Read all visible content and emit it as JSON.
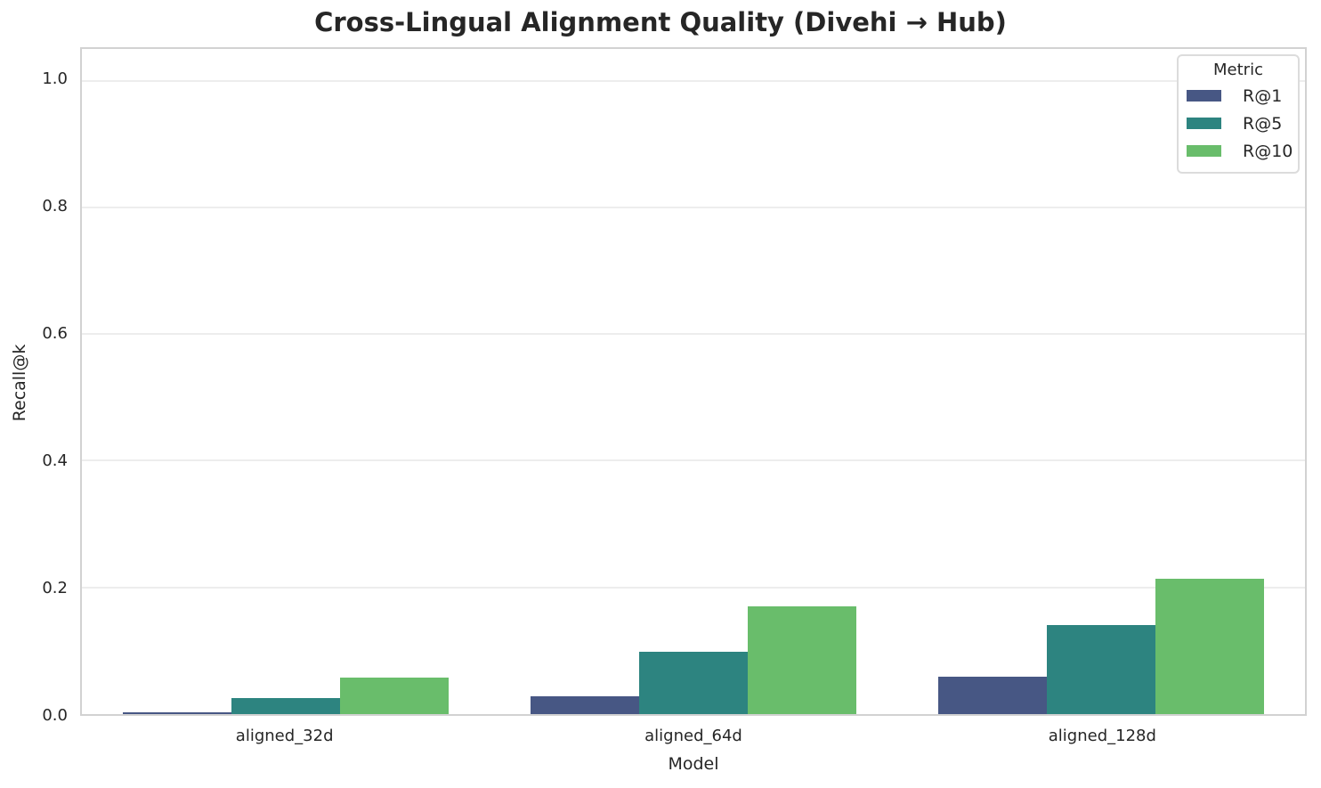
{
  "title": "Cross-Lingual Alignment Quality (Divehi → Hub)",
  "chart_data": {
    "type": "bar",
    "title": "Cross-Lingual Alignment Quality (Divehi → Hub)",
    "xlabel": "Model",
    "ylabel": "Recall@k",
    "categories": [
      "aligned_32d",
      "aligned_64d",
      "aligned_128d"
    ],
    "series": [
      {
        "name": "R@1",
        "color": "#475784",
        "values": [
          0.003,
          0.028,
          0.059
        ]
      },
      {
        "name": "R@5",
        "color": "#2d8480",
        "values": [
          0.025,
          0.098,
          0.141
        ]
      },
      {
        "name": "R@10",
        "color": "#69bd6b",
        "values": [
          0.057,
          0.17,
          0.213
        ]
      }
    ],
    "ylim": [
      0,
      1.05
    ],
    "yticks": [
      0.0,
      0.2,
      0.4,
      0.6,
      0.8,
      1.0
    ],
    "ytick_labels": [
      "0.0",
      "0.2",
      "0.4",
      "0.6",
      "0.8",
      "1.0"
    ],
    "legend": {
      "title": "Metric",
      "position": "upper-right"
    },
    "grid": "horizontal",
    "group_width_fraction": 0.8
  }
}
